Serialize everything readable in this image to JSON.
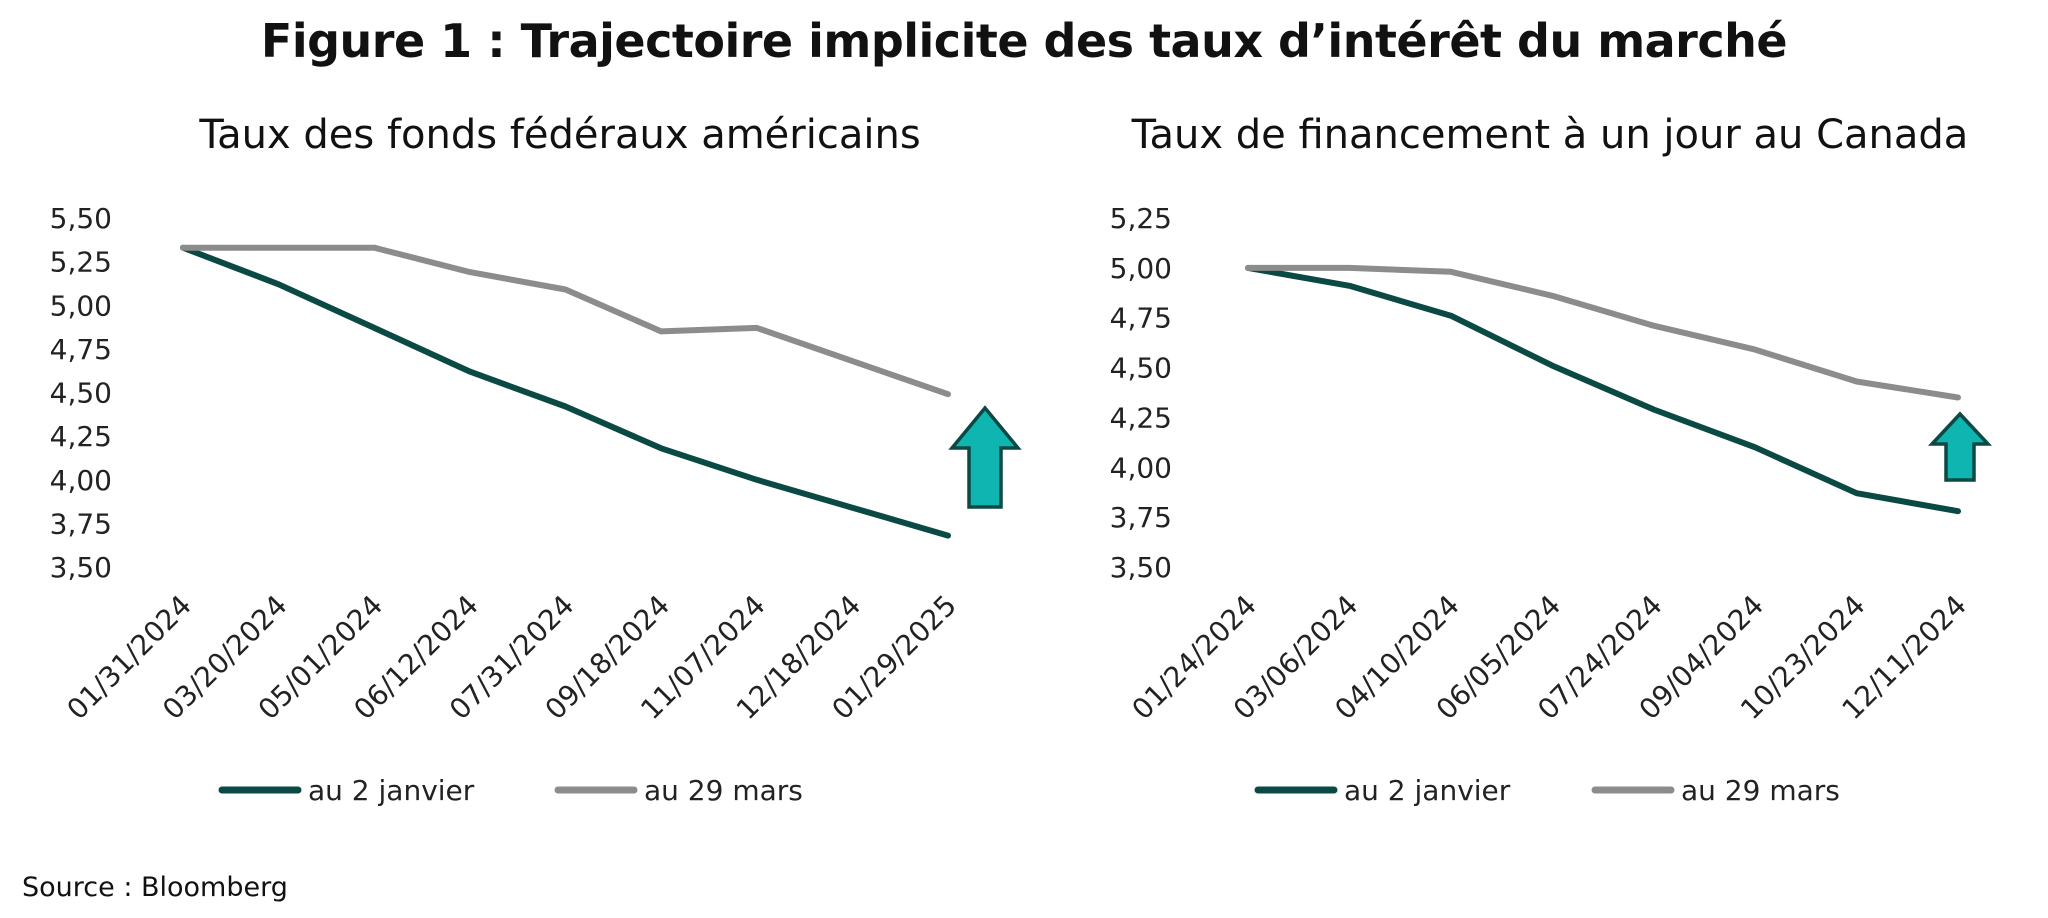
{
  "figure_title": "Figure 1 : Trajectoire implicite des taux d’intérêt du marché",
  "source": "Source : Bloomberg",
  "colors": {
    "series_1": "#0b4a44",
    "series_2": "#8c8c8c",
    "arrow_fill": "#0fb5b1",
    "arrow_stroke": "#0b4a44"
  },
  "chart_data": [
    {
      "type": "line",
      "title": "Taux des fonds fédéraux américains",
      "xlabel": "",
      "ylabel": "",
      "categories": [
        "01/31/2024",
        "03/20/2024",
        "05/01/2024",
        "06/12/2024",
        "07/31/2024",
        "09/18/2024",
        "11/07/2024",
        "12/18/2024",
        "01/29/2025"
      ],
      "y_ticks": [
        "5,50",
        "5,25",
        "5,00",
        "4,75",
        "4,50",
        "4,25",
        "4,00",
        "3,75",
        "3,50"
      ],
      "ylim": [
        3.5,
        5.5
      ],
      "grid": false,
      "legend_position": "bottom",
      "series": [
        {
          "name": "au 2 janvier",
          "values": [
            5.33,
            5.12,
            4.87,
            4.62,
            4.42,
            4.18,
            4.0,
            3.84,
            3.68
          ]
        },
        {
          "name": "au 29 mars",
          "values": [
            5.33,
            5.33,
            5.33,
            5.19,
            5.09,
            4.85,
            4.87,
            4.68,
            4.49
          ]
        }
      ],
      "annotation": "up-arrow"
    },
    {
      "type": "line",
      "title": "Taux de financement à un jour au Canada",
      "xlabel": "",
      "ylabel": "",
      "categories": [
        "01/24/2024",
        "03/06/2024",
        "04/10/2024",
        "06/05/2024",
        "07/24/2024",
        "09/04/2024",
        "10/23/2024",
        "12/11/2024"
      ],
      "y_ticks": [
        "5,25",
        "5,00",
        "4,75",
        "4,50",
        "4,25",
        "4,00",
        "3,75",
        "3,50"
      ],
      "ylim": [
        3.5,
        5.25
      ],
      "grid": false,
      "legend_position": "bottom",
      "series": [
        {
          "name": "au 2 janvier",
          "values": [
            5.0,
            4.91,
            4.76,
            4.51,
            4.29,
            4.1,
            3.87,
            3.78
          ]
        },
        {
          "name": "au 29 mars",
          "values": [
            5.0,
            5.0,
            4.98,
            4.86,
            4.71,
            4.59,
            4.43,
            4.35
          ]
        }
      ],
      "annotation": "up-arrow"
    }
  ]
}
